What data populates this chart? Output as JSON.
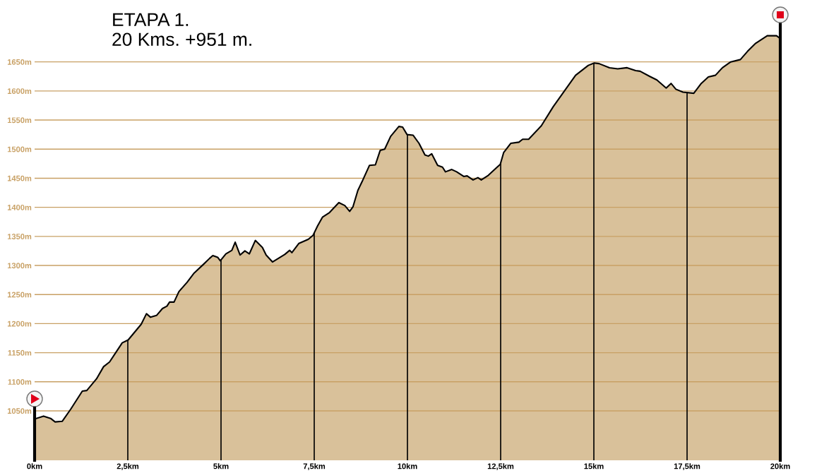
{
  "chart_data": {
    "type": "area",
    "title": "ETAPA 1.",
    "subtitle": "20 Kms. +951 m.",
    "x": [
      0,
      0.24,
      0.43,
      0.55,
      0.74,
      0.97,
      1.28,
      1.4,
      1.66,
      1.85,
      2.01,
      2.35,
      2.51,
      2.86,
      3.0,
      3.11,
      3.27,
      3.43,
      3.55,
      3.62,
      3.74,
      3.87,
      4.09,
      4.28,
      4.53,
      4.69,
      4.78,
      4.91,
      4.98,
      5.13,
      5.29,
      5.38,
      5.51,
      5.64,
      5.76,
      5.92,
      6.11,
      6.21,
      6.38,
      6.71,
      6.84,
      6.9,
      7.09,
      7.34,
      7.47,
      7.59,
      7.72,
      7.91,
      8.16,
      8.32,
      8.45,
      8.54,
      8.67,
      8.79,
      8.98,
      9.14,
      9.27,
      9.39,
      9.55,
      9.77,
      9.87,
      9.99,
      10.15,
      10.31,
      10.47,
      10.56,
      10.65,
      10.81,
      10.94,
      11.02,
      11.19,
      11.32,
      11.51,
      11.6,
      11.76,
      11.89,
      11.98,
      12.17,
      12.39,
      12.49,
      12.58,
      12.77,
      12.99,
      13.09,
      13.25,
      13.59,
      13.91,
      14.22,
      14.51,
      14.85,
      15.01,
      15.14,
      15.42,
      15.64,
      15.89,
      16.12,
      16.24,
      16.5,
      16.69,
      16.94,
      17.07,
      17.2,
      17.39,
      17.68,
      17.88,
      18.07,
      18.26,
      18.45,
      18.67,
      18.93,
      19.12,
      19.34,
      19.65,
      19.9,
      19.98
    ],
    "series": [
      {
        "color": "#d9c19a",
        "values": [
          1036,
          1041,
          1037,
          1031,
          1032,
          1053,
          1084,
          1085,
          1105,
          1126,
          1134,
          1167,
          1172,
          1199,
          1217,
          1211,
          1214,
          1226,
          1230,
          1237,
          1237,
          1255,
          1271,
          1287,
          1302,
          1312,
          1317,
          1314,
          1308,
          1320,
          1326,
          1340,
          1318,
          1325,
          1320,
          1343,
          1331,
          1318,
          1306,
          1319,
          1326,
          1322,
          1338,
          1345,
          1352,
          1368,
          1383,
          1391,
          1408,
          1403,
          1393,
          1401,
          1429,
          1445,
          1472,
          1473,
          1498,
          1500,
          1522,
          1539,
          1538,
          1525,
          1524,
          1510,
          1490,
          1488,
          1492,
          1472,
          1469,
          1461,
          1465,
          1461,
          1453,
          1454,
          1447,
          1451,
          1447,
          1455,
          1468,
          1474,
          1494,
          1510,
          1512,
          1517,
          1517,
          1540,
          1573,
          1601,
          1627,
          1644,
          1648,
          1647,
          1640,
          1638,
          1640,
          1635,
          1634,
          1625,
          1619,
          1605,
          1613,
          1603,
          1598,
          1596,
          1613,
          1624,
          1627,
          1640,
          1650,
          1654,
          1668,
          1682,
          1695,
          1695,
          1691
        ]
      }
    ],
    "xlim": [
      0,
      20
    ],
    "ylim": [
      965,
      1720
    ],
    "xticks": [
      {
        "value": 0,
        "label": "0km"
      },
      {
        "value": 2.5,
        "label": "2,5km"
      },
      {
        "value": 5,
        "label": "5km"
      },
      {
        "value": 7.5,
        "label": "7,5km"
      },
      {
        "value": 10,
        "label": "10km"
      },
      {
        "value": 12.5,
        "label": "12,5km"
      },
      {
        "value": 15,
        "label": "15km"
      },
      {
        "value": 17.5,
        "label": "17,5km"
      },
      {
        "value": 20,
        "label": "20km"
      }
    ],
    "yticks": [
      {
        "value": 1050,
        "label": "1050m"
      },
      {
        "value": 1100,
        "label": "1100m"
      },
      {
        "value": 1150,
        "label": "1150m"
      },
      {
        "value": 1200,
        "label": "1200m"
      },
      {
        "value": 1250,
        "label": "1250m"
      },
      {
        "value": 1300,
        "label": "1300m"
      },
      {
        "value": 1350,
        "label": "1350m"
      },
      {
        "value": 1400,
        "label": "1400m"
      },
      {
        "value": 1450,
        "label": "1450m"
      },
      {
        "value": 1500,
        "label": "1500m"
      },
      {
        "value": 1550,
        "label": "1550m"
      },
      {
        "value": 1600,
        "label": "1600m"
      },
      {
        "value": 1650,
        "label": "1650m"
      }
    ],
    "grid": true,
    "legend": false
  }
}
